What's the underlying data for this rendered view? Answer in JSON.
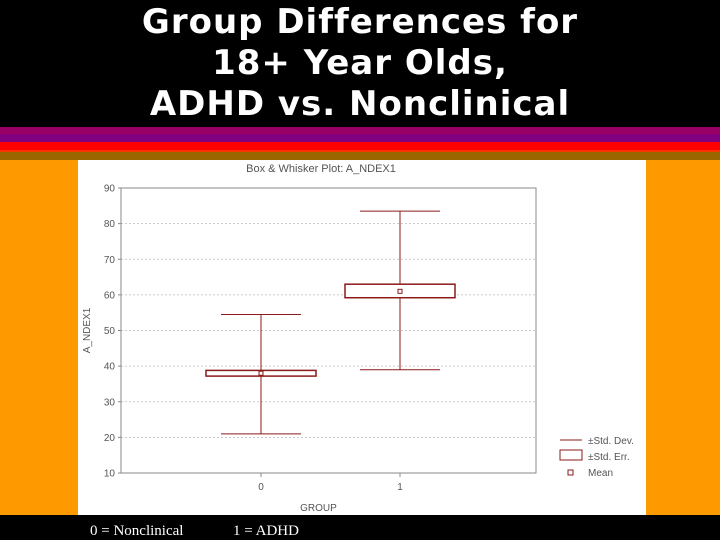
{
  "slide": {
    "title_lines": [
      "Group Differences for",
      "18+ Year Olds,",
      "ADHD vs. Nonclinical"
    ],
    "footer_left": "0 = Nonclinical",
    "footer_right": "1 = ADHD"
  },
  "colors": {
    "background": "#000000",
    "stripes": [
      "#990066",
      "#800080",
      "#ff0000",
      "#ff3300",
      "#996600"
    ],
    "panel_frame": "#ff9900",
    "plot": "#8b1a1a",
    "text": "#ffffff"
  },
  "chart_data": {
    "type": "box-whisker",
    "title": "Box & Whisker Plot: A_NDEX1",
    "xlabel": "GROUP",
    "ylabel": "A_NDEX1",
    "ylim": [
      10,
      90
    ],
    "yticks": [
      "10",
      "20",
      "30",
      "40",
      "50",
      "60",
      "70",
      "80",
      "90"
    ],
    "categories": [
      "0",
      "1"
    ],
    "groups": [
      {
        "category": "0",
        "mean": 38,
        "se_low": 37.2,
        "se_high": 38.8,
        "sd_low": 21,
        "sd_high": 54.5
      },
      {
        "category": "1",
        "mean": 61,
        "se_low": 59.2,
        "se_high": 63,
        "sd_low": 39,
        "sd_high": 83.5
      }
    ],
    "legend": [
      "±Std. Dev.",
      "±Std. Err.",
      "Mean"
    ],
    "legend_position": "bottom-right",
    "grid": true
  }
}
